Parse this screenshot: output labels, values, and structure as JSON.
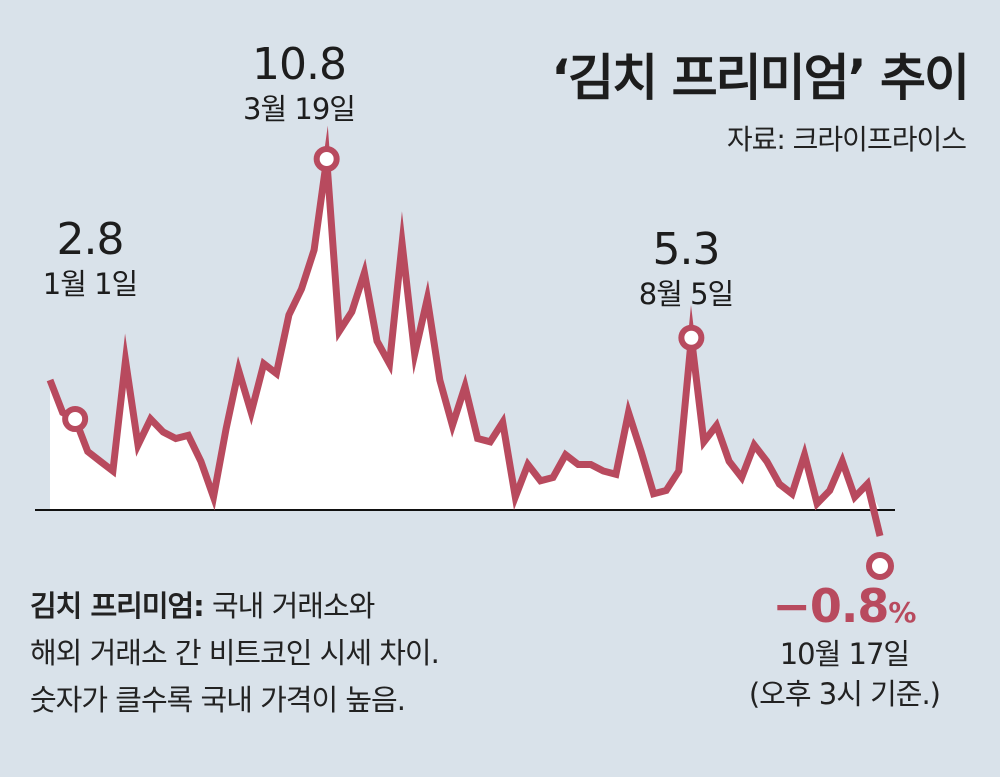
{
  "chart_data": {
    "type": "area",
    "title": "‘김치 프리미엄’ 추이",
    "source": "자료: 크라이프라이스",
    "baseline": 0,
    "ylim": [
      -1.5,
      13
    ],
    "values": [
      4.0,
      3.0,
      2.8,
      1.8,
      1.5,
      1.2,
      4.6,
      2.0,
      2.8,
      2.4,
      2.2,
      2.3,
      1.5,
      0.4,
      2.5,
      4.3,
      3.0,
      4.5,
      4.2,
      6.0,
      6.8,
      8.0,
      10.8,
      5.5,
      6.1,
      7.3,
      5.2,
      4.5,
      8.2,
      4.8,
      6.5,
      4.0,
      2.6,
      3.8,
      2.2,
      2.1,
      2.7,
      0.4,
      1.4,
      0.9,
      1.0,
      1.7,
      1.4,
      1.4,
      1.2,
      1.1,
      3.0,
      1.8,
      0.5,
      0.6,
      1.2,
      5.3,
      2.1,
      2.6,
      1.5,
      1.0,
      2.0,
      1.5,
      0.8,
      0.5,
      1.7,
      0.2,
      0.6,
      1.5,
      0.4,
      0.8,
      -0.8
    ],
    "highlights": [
      {
        "index": 2,
        "value": "2.8",
        "date": "1월 1일"
      },
      {
        "index": 22,
        "value": "10.8",
        "date": "3월 19일"
      },
      {
        "index": 51,
        "value": "5.3",
        "date": "8월 5일"
      },
      {
        "index": 66,
        "value": "−0.8",
        "unit": "%",
        "date": "10월 17일",
        "note": "(오후 3시 기준.)"
      }
    ],
    "line_color": "#b84a5e",
    "fill_color": "#ffffff"
  },
  "note": {
    "term": "김치 프리미엄:",
    "line1": "국내 거래소와",
    "line2": "해외 거래소 간 비트코인 시세 차이.",
    "line3": "숫자가 클수록 국내 가격이 높음."
  }
}
